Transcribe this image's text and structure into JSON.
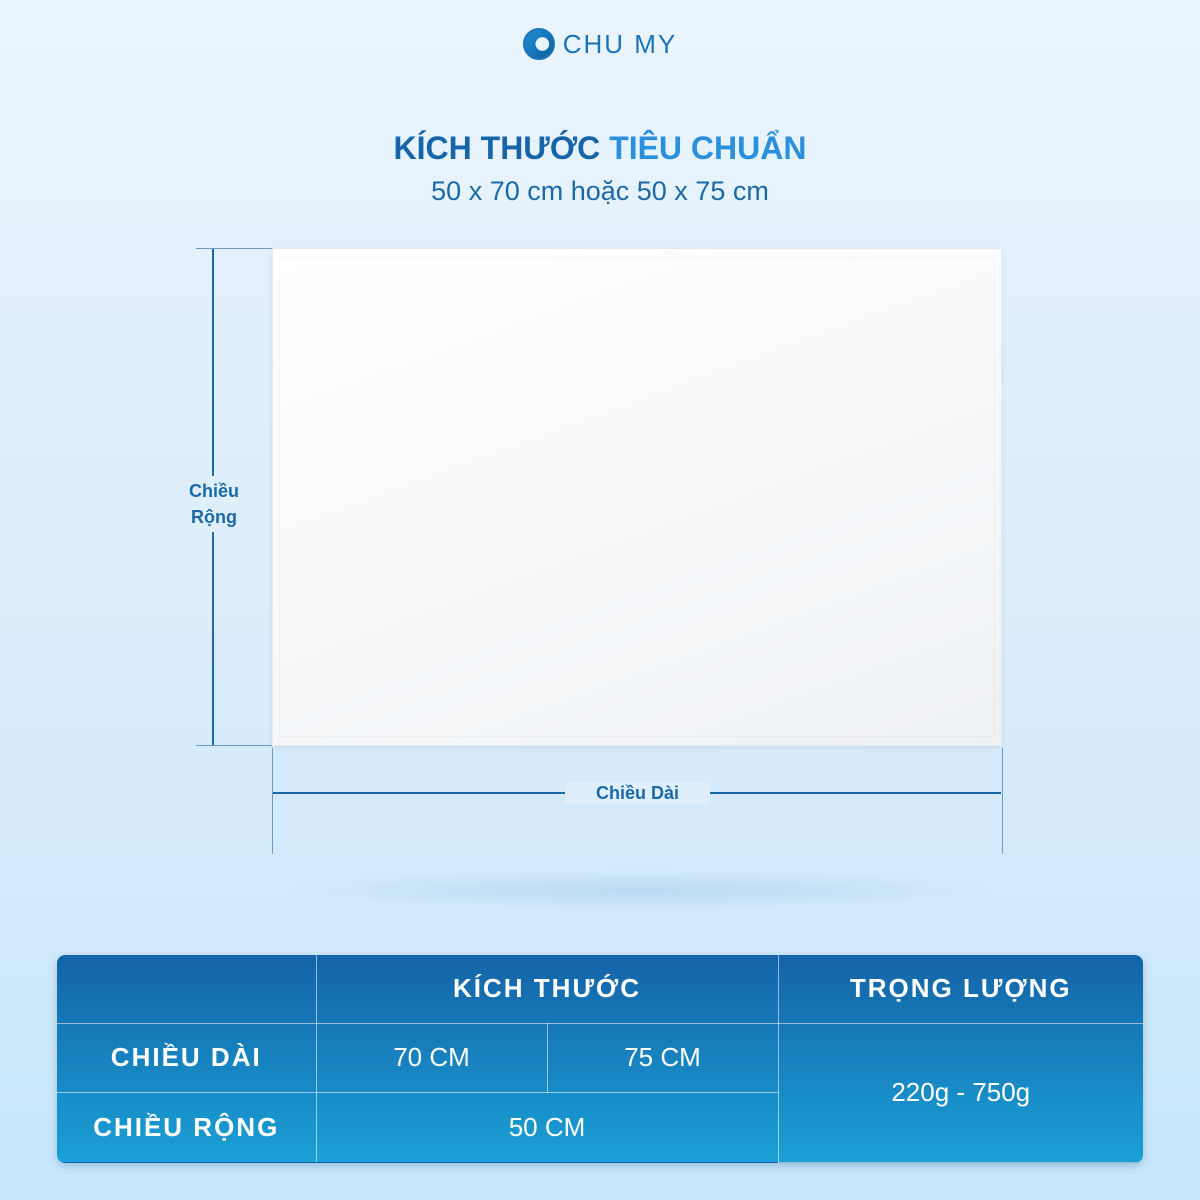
{
  "brand": {
    "name": "CHU MY"
  },
  "heading": {
    "part1": "KÍCH THƯỚC",
    "part2": "TIÊU CHUẨN",
    "subtitle": "50 x 70 cm hoặc 50 x 75 cm"
  },
  "diagram": {
    "width_label_line1": "Chiều",
    "width_label_line2": "Rộng",
    "length_label": "Chiều Dài"
  },
  "table": {
    "header_size": "KÍCH THƯỚC",
    "header_weight": "TRỌNG LƯỢNG",
    "row_length_label": "CHIỀU DÀI",
    "length_values": [
      "70 CM",
      "75 CM"
    ],
    "row_width_label": "CHIỀU RỘNG",
    "width_value": "50 CM",
    "weight_value": "220g - 750g"
  },
  "colors": {
    "primary": "#1565a8",
    "accent": "#2a8fdc"
  }
}
